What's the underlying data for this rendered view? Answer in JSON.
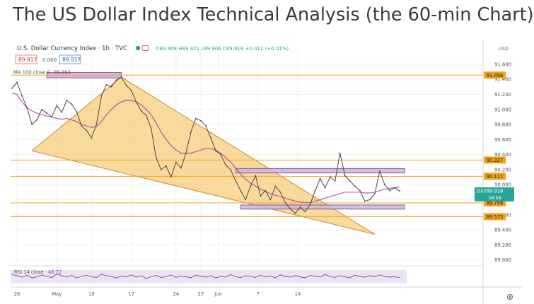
{
  "headline": "The US Dollar Index Technical Analysis (the 60-min Chart)",
  "header": {
    "symbol_label": "U.S. Dollar Currency Index · 1h · TVC",
    "ohlc": "O89.908 H89.921 L89.906 C89.918 +0.012 (+0.01%)",
    "bid": "89.917",
    "spread": "0.000",
    "ask": "89.917",
    "ma_label": "MA 100 close 0",
    "ma_value": "89.963",
    "rsi_label": "RSI 14 close",
    "rsi_value": "46.72",
    "currency": "USD"
  },
  "chart_data": {
    "type": "line",
    "title": "U.S. Dollar Currency Index · 1h · TVC",
    "x_ticks": [
      "26",
      "May",
      "10",
      "17",
      "24",
      "27",
      "Jun",
      "7",
      "14"
    ],
    "y_ticks": [
      "91.600",
      "91.400",
      "91.200",
      "91.000",
      "90.800",
      "90.600",
      "90.400",
      "90.200",
      "90.000",
      "89.800",
      "89.600",
      "89.400",
      "89.200",
      "89.000"
    ],
    "ylim": [
      88.94,
      91.74
    ],
    "series": [
      {
        "name": "DXY",
        "values": [
          91.28,
          91.36,
          91.18,
          91.02,
          90.8,
          90.86,
          91.0,
          90.95,
          90.9,
          91.05,
          90.96,
          91.12,
          91.07,
          90.97,
          90.78,
          90.72,
          90.62,
          90.8,
          91.18,
          91.33,
          91.3,
          91.39,
          91.43,
          91.32,
          91.25,
          91.1,
          90.98,
          90.92,
          90.75,
          90.36,
          90.2,
          90.25,
          90.1,
          90.3,
          90.22,
          90.42,
          90.7,
          90.88,
          90.85,
          90.78,
          90.62,
          90.45,
          90.4,
          90.26,
          90.2,
          90.05,
          89.92,
          89.8,
          89.98,
          90.12,
          89.85,
          89.92,
          89.8,
          89.98,
          89.9,
          89.76,
          89.68,
          89.62,
          89.7,
          89.64,
          89.74,
          89.92,
          90.08,
          89.96,
          90.1,
          90.05,
          90.42,
          90.12,
          90.05,
          89.98,
          89.92,
          89.78,
          89.8,
          89.88,
          90.18,
          90.0,
          89.92,
          89.96,
          89.918
        ]
      },
      {
        "name": "MA 100 close 0",
        "values": [
          91.22,
          91.2,
          91.1,
          91.02,
          90.98,
          90.95,
          90.93,
          90.91,
          90.9,
          90.88,
          90.87,
          90.88,
          90.86,
          90.84,
          90.8,
          90.78,
          90.76,
          90.77,
          90.84,
          90.93,
          91.0,
          91.06,
          91.1,
          91.12,
          91.12,
          91.1,
          91.06,
          91.0,
          90.93,
          90.82,
          90.7,
          90.6,
          90.52,
          90.46,
          90.42,
          90.41,
          90.42,
          90.44,
          90.46,
          90.48,
          90.48,
          90.46,
          90.42,
          90.36,
          90.3,
          90.22,
          90.14,
          90.07,
          90.02,
          89.98,
          89.94,
          89.91,
          89.88,
          89.86,
          89.84,
          89.82,
          89.8,
          89.78,
          89.77,
          89.76,
          89.76,
          89.78,
          89.8,
          89.82,
          89.84,
          89.86,
          89.88,
          89.9,
          89.9,
          89.9,
          89.9,
          89.89,
          89.89,
          89.9,
          89.92,
          89.94,
          89.95,
          89.96,
          89.963
        ]
      },
      {
        "name": "RSI 14 close",
        "values": [
          62,
          55,
          48,
          58,
          44,
          50,
          60,
          52,
          46,
          64,
          55,
          49,
          57,
          45,
          52,
          58,
          50,
          47,
          63,
          56,
          51,
          44,
          53,
          49,
          60,
          48,
          55,
          42,
          50,
          57,
          46,
          52,
          59,
          47,
          54,
          50,
          45,
          58,
          53,
          48,
          56,
          44,
          52,
          49,
          61,
          50,
          46,
          55,
          51,
          47,
          58,
          49,
          53,
          45,
          60,
          52,
          48,
          56,
          50,
          44,
          57,
          53,
          49,
          62,
          51,
          47,
          55,
          50,
          45,
          58,
          52,
          48,
          56,
          50,
          60,
          52,
          48,
          50,
          46.72
        ]
      }
    ],
    "price_labels": [
      {
        "value": 91.456,
        "text": "91.456",
        "color": "#f0a31c"
      },
      {
        "value": 90.327,
        "text": "90.327",
        "color": "#f0a31c"
      },
      {
        "value": 90.111,
        "text": "90.111",
        "color": "#f0a31c"
      },
      {
        "value": 89.758,
        "text": "89.758",
        "color": "#f0a31c"
      },
      {
        "value": 89.575,
        "text": "89.575",
        "color": "#f0a31c"
      }
    ],
    "last_price": {
      "symbol": "DXY",
      "value": 89.918,
      "text": "89.918",
      "countdown": "58:59",
      "color": "#26a69a"
    },
    "horizontal_lines": [
      91.456,
      90.327,
      90.111,
      89.758,
      89.575
    ],
    "rectangles": [
      {
        "from": 7,
        "to": 22,
        "low": 91.42,
        "high": 91.49
      },
      {
        "from": 45,
        "to": 79,
        "low": 90.155,
        "high": 90.215
      },
      {
        "from": 46,
        "to": 79,
        "low": 89.675,
        "high": 89.73
      }
    ],
    "wedge": {
      "points": [
        {
          "index": 4,
          "value": 90.45
        },
        {
          "index": 22,
          "value": 91.43
        },
        {
          "index": 73,
          "value": 89.34
        }
      ]
    },
    "colors": {
      "price": "#4a4a4a",
      "ma": "#9c3c9c",
      "level_line": "#f0a31c",
      "wedge_fill": "#f7c160",
      "wedge_stroke": "#c98a3a",
      "rect_fill": "#cdb3dd",
      "rect_stroke": "#7a4a8a",
      "rsi": "#8e44ad",
      "rsi_band": "#ece3f5"
    },
    "grid": true,
    "log_scale": false
  }
}
